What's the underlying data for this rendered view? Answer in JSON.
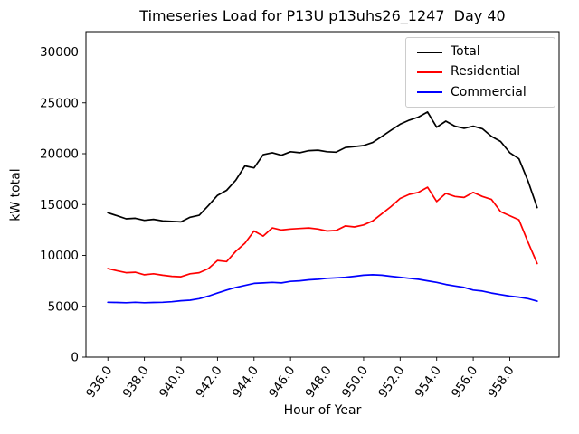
{
  "chart_data": {
    "type": "line",
    "title": "Timeseries Load for P13U p13uhs26_1247  Day 40",
    "xlabel": "Hour of Year",
    "ylabel": "kW total",
    "xlim": [
      934.8,
      960.7
    ],
    "ylim": [
      0,
      32000
    ],
    "grid": false,
    "legend_position": "upper right",
    "x_ticks": {
      "values": [
        936,
        938,
        940,
        942,
        944,
        946,
        948,
        950,
        952,
        954,
        956,
        958
      ],
      "labels": [
        "936.0",
        "938.0",
        "940.0",
        "942.0",
        "944.0",
        "946.0",
        "948.0",
        "950.0",
        "952.0",
        "954.0",
        "956.0",
        "958.0"
      ]
    },
    "y_ticks": {
      "values": [
        0,
        5000,
        10000,
        15000,
        20000,
        25000,
        30000
      ],
      "labels": [
        "0",
        "5000",
        "10000",
        "15000",
        "20000",
        "25000",
        "30000"
      ]
    },
    "x": [
      936.0,
      936.5,
      937.0,
      937.5,
      938.0,
      938.5,
      939.0,
      939.5,
      940.0,
      940.5,
      941.0,
      941.5,
      942.0,
      942.5,
      943.0,
      943.5,
      944.0,
      944.5,
      945.0,
      945.5,
      946.0,
      946.5,
      947.0,
      947.5,
      948.0,
      948.5,
      949.0,
      949.5,
      950.0,
      950.5,
      951.0,
      951.5,
      952.0,
      952.5,
      953.0,
      953.5,
      954.0,
      954.5,
      955.0,
      955.5,
      956.0,
      956.5,
      957.0,
      957.5,
      958.0,
      958.5,
      959.0,
      959.5
    ],
    "series": [
      {
        "name": "Total",
        "color": "#000000",
        "values": [
          14200,
          13900,
          13600,
          13650,
          13450,
          13550,
          13400,
          13350,
          13300,
          13750,
          13950,
          14900,
          15900,
          16400,
          17400,
          18800,
          18600,
          19900,
          20100,
          19850,
          20200,
          20100,
          20300,
          20350,
          20200,
          20150,
          20600,
          20700,
          20800,
          21100,
          21700,
          22300,
          22900,
          23300,
          23600,
          24100,
          22600,
          23200,
          22700,
          22500,
          22700,
          22450,
          21700,
          21200,
          20100,
          19500,
          17300,
          14700
        ]
      },
      {
        "name": "Residential",
        "color": "#ff0000",
        "values": [
          8700,
          8500,
          8300,
          8350,
          8100,
          8200,
          8050,
          7950,
          7900,
          8200,
          8300,
          8700,
          9500,
          9400,
          10400,
          11200,
          12400,
          11900,
          12700,
          12500,
          12600,
          12650,
          12700,
          12600,
          12400,
          12450,
          12900,
          12800,
          13000,
          13400,
          14100,
          14800,
          15600,
          16000,
          16200,
          16700,
          15300,
          16100,
          15800,
          15700,
          16200,
          15800,
          15500,
          14300,
          13900,
          13500,
          11300,
          9200
        ]
      },
      {
        "name": "Commercial",
        "color": "#0000ff",
        "values": [
          5400,
          5380,
          5350,
          5400,
          5350,
          5380,
          5400,
          5450,
          5550,
          5600,
          5750,
          6000,
          6300,
          6600,
          6850,
          7050,
          7250,
          7300,
          7350,
          7300,
          7450,
          7500,
          7600,
          7650,
          7750,
          7800,
          7850,
          7950,
          8050,
          8100,
          8050,
          7950,
          7850,
          7750,
          7650,
          7500,
          7350,
          7150,
          7000,
          6850,
          6600,
          6500,
          6300,
          6150,
          6000,
          5900,
          5750,
          5500
        ]
      }
    ]
  }
}
